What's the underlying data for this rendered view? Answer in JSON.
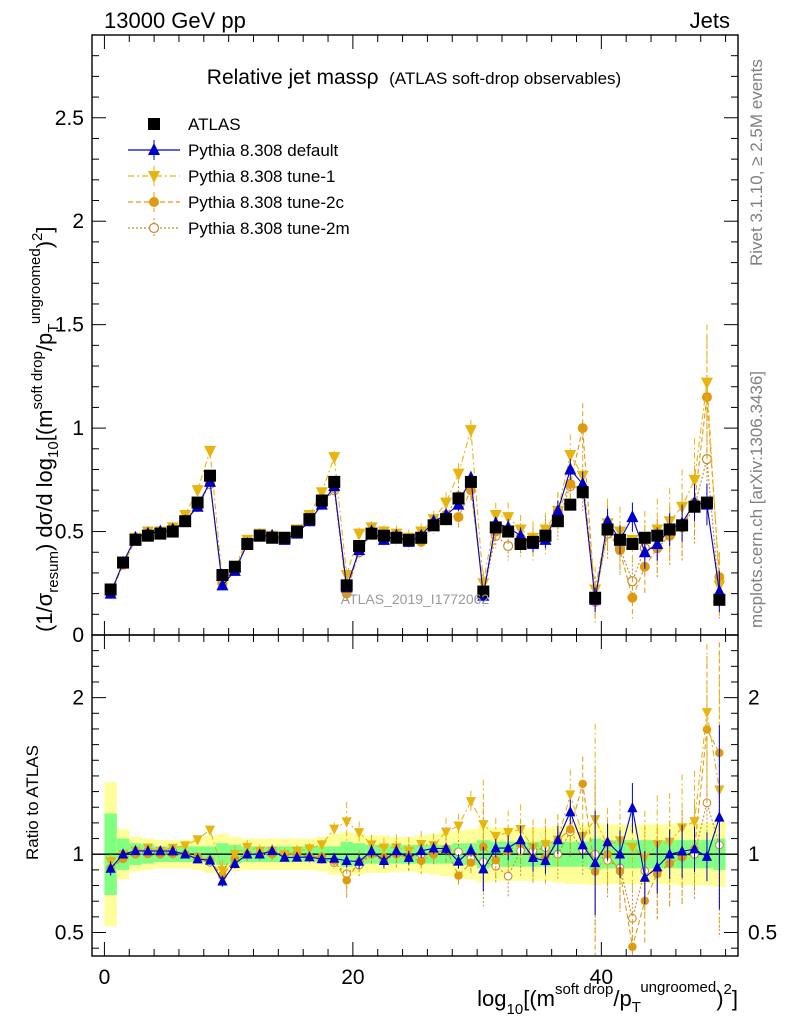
{
  "header": {
    "left": "13000 GeV pp",
    "right": "Jets"
  },
  "side_labels": {
    "top": "Rivet 3.1.10, ≥ 2.5M events",
    "bottom": "mcplots.cern.ch [arXiv:1306.3436]"
  },
  "colors": {
    "data": "#000000",
    "default": "#0000cc",
    "tune1": "#e8b40e",
    "tune2c": "#e09a10",
    "tune2m": "#c8882c",
    "band_inner": "#80ff80",
    "band_outer": "#ffff99"
  },
  "chart_data": {
    "type": "scatter",
    "title": "Relative jet massρ",
    "subtitle": "(ATLAS soft-drop observables)",
    "analysis_label": "ATLAS_2019_I1772062",
    "xlabel": "log10[(m^{soft drop}/p_T^{ungroomed})^2]",
    "ylabel_top": "(1/σ_resum) dσ/d log10[(m^{soft drop}/p_T^{ungroomed})^2]",
    "ylabel_bottom": "Ratio to ATLAS",
    "xlim": [
      -1,
      51
    ],
    "ylim": [
      0,
      2.9
    ],
    "ratio_ylim": [
      0.35,
      2.4
    ],
    "xticks": [
      0,
      20,
      40
    ],
    "yticks": [
      0,
      0.5,
      1,
      1.5,
      2,
      2.5
    ],
    "yticks_labels": [
      "0",
      "0.5",
      "1",
      "1.5",
      "2",
      "2.5"
    ],
    "ratio_yticks": [
      0.5,
      1,
      2
    ],
    "ratio_yticks_labels": [
      "0.5",
      "1",
      "2"
    ],
    "xticks_labels": [
      "0",
      "20",
      "40"
    ],
    "legend_position": "top-left",
    "x": [
      0.5,
      1.5,
      2.5,
      3.5,
      4.5,
      5.5,
      6.5,
      7.5,
      8.5,
      9.5,
      10.5,
      11.5,
      12.5,
      13.5,
      14.5,
      15.5,
      16.5,
      17.5,
      18.5,
      19.5,
      20.5,
      21.5,
      22.5,
      23.5,
      24.5,
      25.5,
      26.5,
      27.5,
      28.5,
      29.5,
      30.5,
      31.5,
      32.5,
      33.5,
      34.5,
      35.5,
      36.5,
      37.5,
      38.5,
      39.5,
      40.5,
      41.5,
      42.5,
      43.5,
      44.5,
      45.5,
      46.5,
      47.5,
      48.5,
      49.5
    ],
    "series": [
      {
        "name": "ATLAS",
        "key": "data",
        "marker": "square",
        "values": [
          0.22,
          0.35,
          0.46,
          0.48,
          0.49,
          0.5,
          0.55,
          0.64,
          0.77,
          0.29,
          0.33,
          0.44,
          0.48,
          0.47,
          0.47,
          0.5,
          0.56,
          0.65,
          0.74,
          0.24,
          0.43,
          0.49,
          0.48,
          0.47,
          0.46,
          0.47,
          0.53,
          0.56,
          0.66,
          0.74,
          0.21,
          0.52,
          0.5,
          0.44,
          0.45,
          0.48,
          0.55,
          0.63,
          0.69,
          0.18,
          0.51,
          0.46,
          0.44,
          0.47,
          0.48,
          0.51,
          0.53,
          0.62,
          0.64,
          0.17
        ]
      },
      {
        "name": "Pythia 8.308 default",
        "key": "default",
        "marker": "triangle-up",
        "values": [
          0.2,
          0.35,
          0.47,
          0.49,
          0.5,
          0.51,
          0.55,
          0.62,
          0.74,
          0.24,
          0.31,
          0.44,
          0.48,
          0.48,
          0.46,
          0.49,
          0.55,
          0.63,
          0.72,
          0.23,
          0.41,
          0.5,
          0.46,
          0.48,
          0.45,
          0.48,
          0.55,
          0.58,
          0.63,
          0.76,
          0.19,
          0.54,
          0.52,
          0.48,
          0.44,
          0.46,
          0.6,
          0.8,
          0.73,
          0.17,
          0.55,
          0.46,
          0.57,
          0.4,
          0.44,
          0.51,
          0.54,
          0.64,
          0.63,
          0.21
        ]
      },
      {
        "name": "Pythia 8.308 tune-1",
        "key": "tune1",
        "marker": "triangle-down",
        "values": [
          0.21,
          0.35,
          0.47,
          0.5,
          0.5,
          0.52,
          0.58,
          0.7,
          0.89,
          0.26,
          0.33,
          0.46,
          0.49,
          0.48,
          0.47,
          0.51,
          0.58,
          0.69,
          0.86,
          0.29,
          0.49,
          0.52,
          0.5,
          0.49,
          0.47,
          0.5,
          0.56,
          0.64,
          0.78,
          0.99,
          0.25,
          0.58,
          0.57,
          0.51,
          0.47,
          0.51,
          0.6,
          0.87,
          0.77,
          0.22,
          0.54,
          0.5,
          0.46,
          0.46,
          0.51,
          0.55,
          0.62,
          0.75,
          1.22,
          0.24
        ]
      },
      {
        "name": "Pythia 8.308 tune-2c",
        "key": "tune2c",
        "marker": "circle",
        "values": [
          0.2,
          0.34,
          0.46,
          0.48,
          0.49,
          0.5,
          0.55,
          0.63,
          0.74,
          0.25,
          0.32,
          0.44,
          0.48,
          0.47,
          0.47,
          0.5,
          0.55,
          0.64,
          0.71,
          0.2,
          0.41,
          0.49,
          0.47,
          0.47,
          0.45,
          0.45,
          0.53,
          0.58,
          0.57,
          0.7,
          0.22,
          0.5,
          0.51,
          0.47,
          0.44,
          0.47,
          0.6,
          0.73,
          1.0,
          0.16,
          0.51,
          0.41,
          0.18,
          0.33,
          0.42,
          0.48,
          0.52,
          0.64,
          1.15,
          0.28
        ]
      },
      {
        "name": "Pythia 8.308 tune-2m",
        "key": "tune2m",
        "marker": "circle-open",
        "values": [
          0.2,
          0.34,
          0.46,
          0.49,
          0.49,
          0.51,
          0.55,
          0.62,
          0.73,
          0.25,
          0.32,
          0.44,
          0.48,
          0.48,
          0.47,
          0.5,
          0.55,
          0.63,
          0.7,
          0.21,
          0.4,
          0.49,
          0.46,
          0.47,
          0.45,
          0.47,
          0.53,
          0.58,
          0.67,
          0.72,
          0.2,
          0.48,
          0.43,
          0.45,
          0.46,
          0.5,
          0.55,
          0.72,
          0.71,
          0.18,
          0.49,
          0.42,
          0.26,
          0.42,
          0.42,
          0.48,
          0.52,
          0.62,
          0.85,
          0.18
        ]
      }
    ],
    "errors": {
      "default": [
        0.01,
        0.01,
        0.01,
        0.01,
        0.01,
        0.01,
        0.01,
        0.01,
        0.01,
        0.01,
        0.01,
        0.01,
        0.01,
        0.01,
        0.01,
        0.01,
        0.01,
        0.01,
        0.01,
        0.01,
        0.02,
        0.02,
        0.02,
        0.02,
        0.02,
        0.02,
        0.02,
        0.02,
        0.03,
        0.03,
        0.03,
        0.03,
        0.04,
        0.04,
        0.04,
        0.04,
        0.05,
        0.05,
        0.06,
        0.06,
        0.06,
        0.07,
        0.07,
        0.08,
        0.08,
        0.08,
        0.09,
        0.09,
        0.1,
        0.1
      ],
      "tune1": [
        0.01,
        0.01,
        0.01,
        0.01,
        0.01,
        0.01,
        0.01,
        0.01,
        0.02,
        0.02,
        0.02,
        0.02,
        0.02,
        0.02,
        0.02,
        0.02,
        0.02,
        0.02,
        0.03,
        0.03,
        0.03,
        0.03,
        0.03,
        0.04,
        0.04,
        0.04,
        0.04,
        0.05,
        0.05,
        0.05,
        0.06,
        0.06,
        0.07,
        0.07,
        0.08,
        0.08,
        0.09,
        0.1,
        0.1,
        0.11,
        0.12,
        0.12,
        0.13,
        0.14,
        0.15,
        0.16,
        0.18,
        0.2,
        0.28,
        0.15
      ],
      "tune2c": [
        0.01,
        0.01,
        0.01,
        0.01,
        0.01,
        0.01,
        0.01,
        0.01,
        0.02,
        0.02,
        0.02,
        0.02,
        0.02,
        0.02,
        0.02,
        0.02,
        0.02,
        0.02,
        0.03,
        0.03,
        0.03,
        0.03,
        0.03,
        0.04,
        0.04,
        0.04,
        0.04,
        0.05,
        0.05,
        0.05,
        0.06,
        0.06,
        0.07,
        0.07,
        0.08,
        0.08,
        0.09,
        0.1,
        0.12,
        0.1,
        0.12,
        0.12,
        0.1,
        0.13,
        0.14,
        0.14,
        0.16,
        0.18,
        0.3,
        0.12
      ],
      "tune2m": [
        0.01,
        0.01,
        0.01,
        0.01,
        0.01,
        0.01,
        0.01,
        0.01,
        0.02,
        0.02,
        0.02,
        0.02,
        0.02,
        0.02,
        0.02,
        0.02,
        0.02,
        0.02,
        0.03,
        0.03,
        0.03,
        0.03,
        0.03,
        0.04,
        0.04,
        0.04,
        0.04,
        0.05,
        0.05,
        0.05,
        0.06,
        0.06,
        0.07,
        0.07,
        0.08,
        0.08,
        0.09,
        0.1,
        0.11,
        0.1,
        0.12,
        0.12,
        0.1,
        0.13,
        0.14,
        0.14,
        0.16,
        0.18,
        0.25,
        0.1
      ]
    },
    "ratio_band_inner": [
      0.26,
      0.1,
      0.07,
      0.06,
      0.05,
      0.05,
      0.05,
      0.05,
      0.05,
      0.07,
      0.06,
      0.05,
      0.05,
      0.05,
      0.05,
      0.05,
      0.05,
      0.05,
      0.05,
      0.08,
      0.07,
      0.06,
      0.06,
      0.06,
      0.06,
      0.06,
      0.06,
      0.06,
      0.07,
      0.07,
      0.09,
      0.08,
      0.08,
      0.08,
      0.08,
      0.08,
      0.08,
      0.08,
      0.08,
      0.1,
      0.09,
      0.09,
      0.09,
      0.09,
      0.09,
      0.09,
      0.09,
      0.09,
      0.09,
      0.1
    ],
    "ratio_band_outer": [
      0.46,
      0.16,
      0.11,
      0.1,
      0.09,
      0.09,
      0.09,
      0.1,
      0.12,
      0.13,
      0.11,
      0.1,
      0.1,
      0.1,
      0.1,
      0.1,
      0.1,
      0.11,
      0.13,
      0.14,
      0.13,
      0.12,
      0.12,
      0.11,
      0.11,
      0.12,
      0.13,
      0.14,
      0.15,
      0.16,
      0.18,
      0.17,
      0.17,
      0.17,
      0.17,
      0.17,
      0.18,
      0.19,
      0.19,
      0.2,
      0.19,
      0.19,
      0.19,
      0.19,
      0.19,
      0.19,
      0.2,
      0.2,
      0.2,
      0.21
    ]
  }
}
